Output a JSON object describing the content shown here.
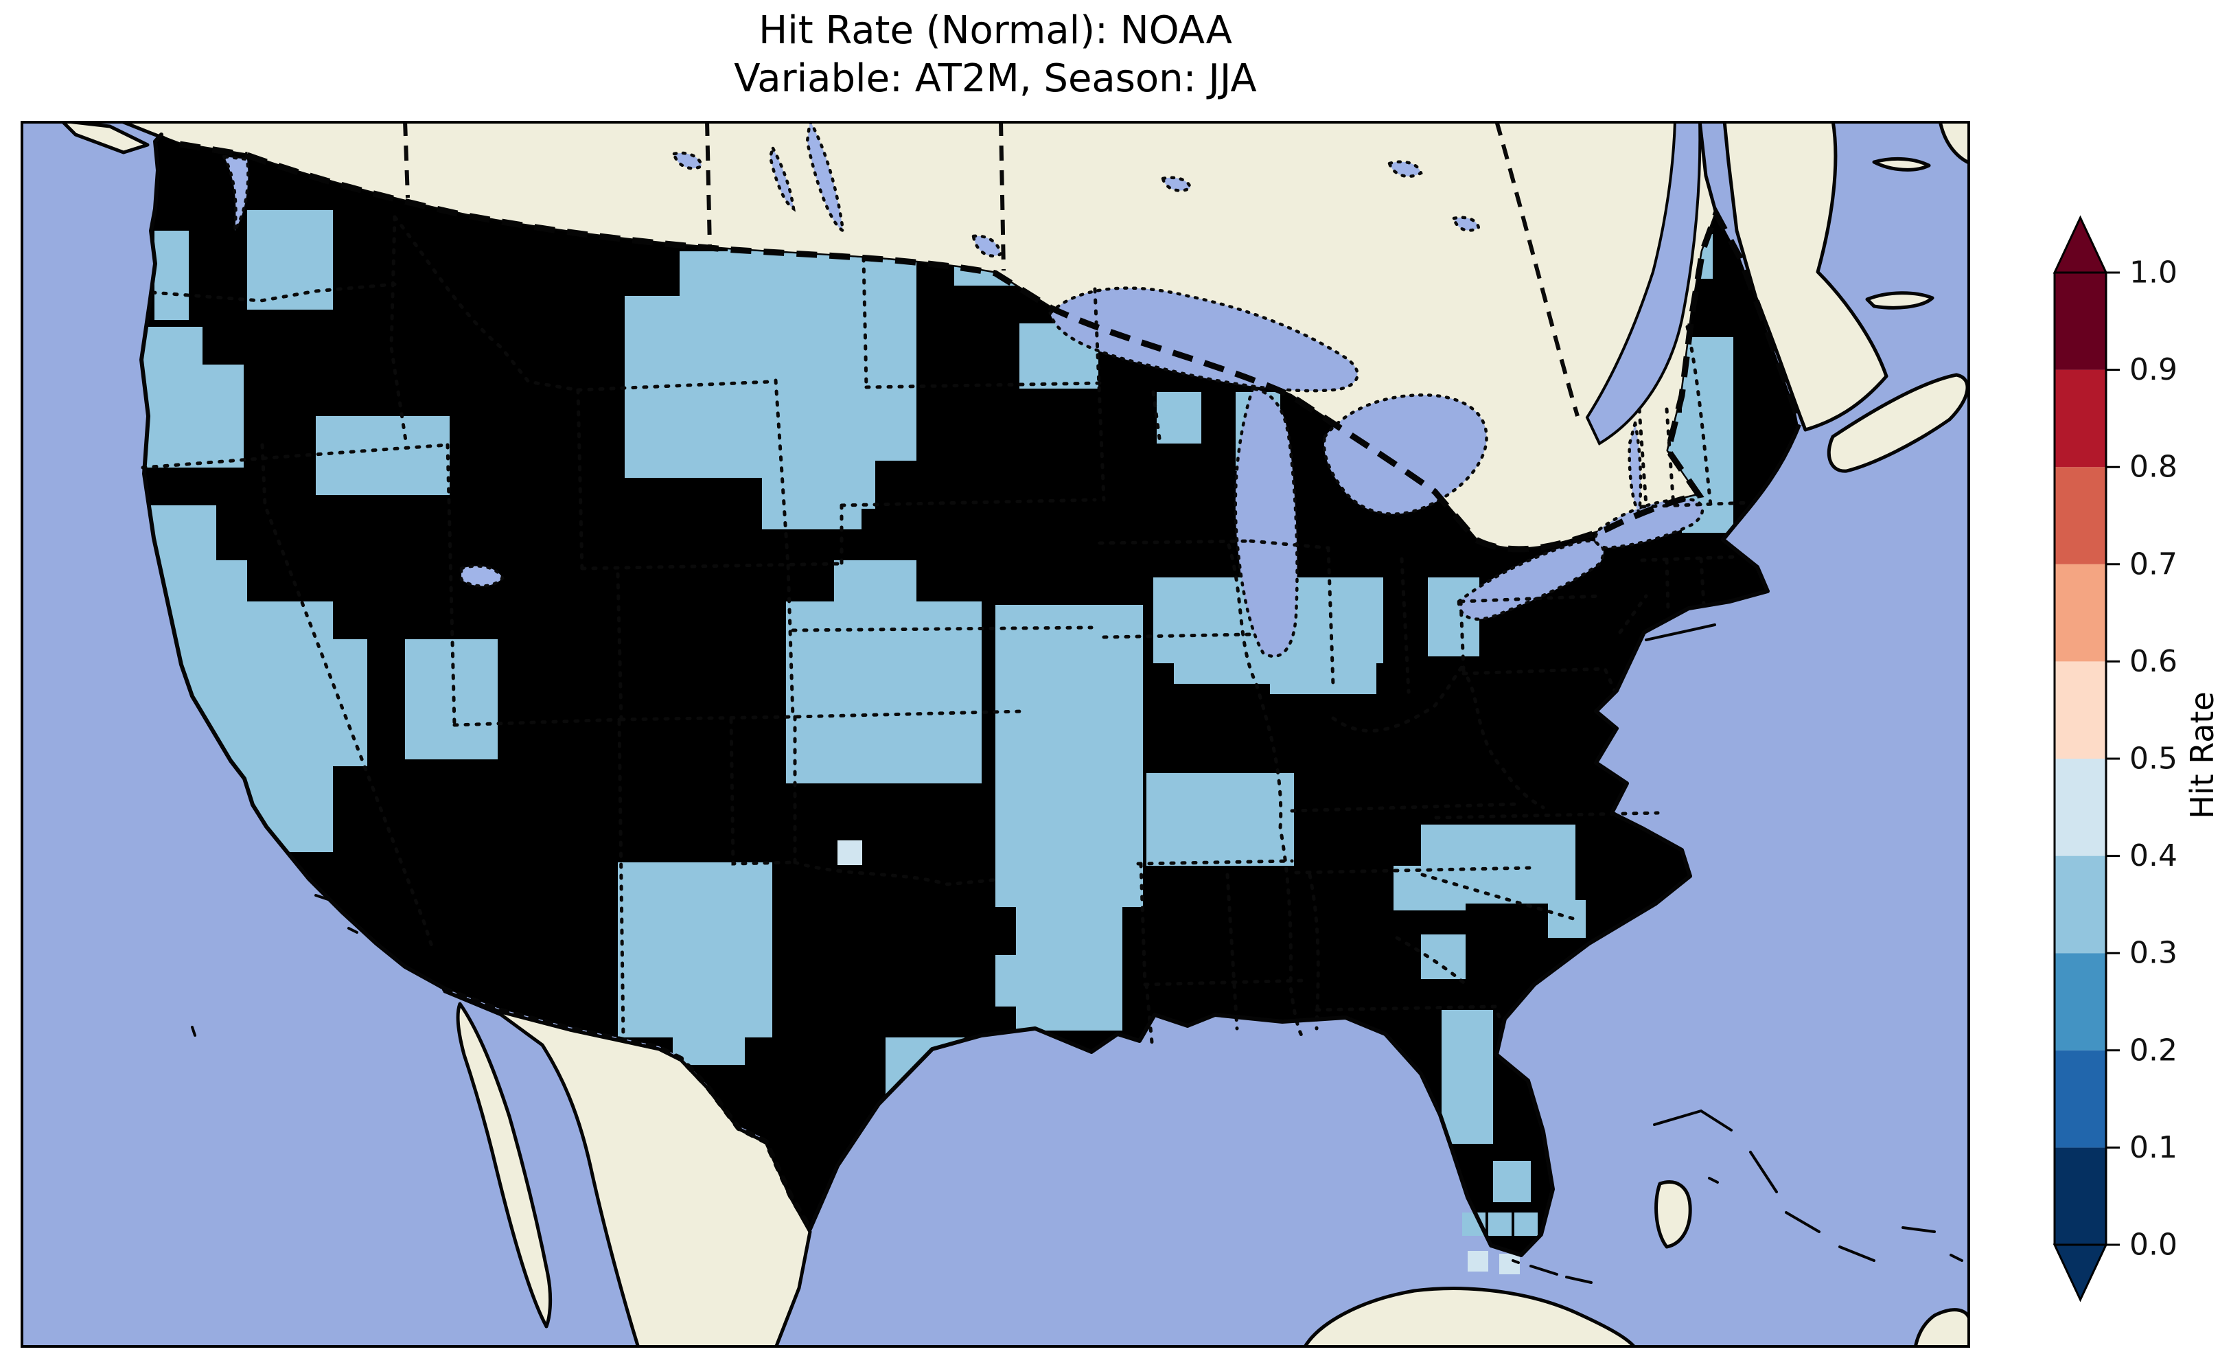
{
  "title": {
    "line1": "Hit Rate (Normal): NOAA",
    "line2": "Variable: AT2M, Season: JJA"
  },
  "colorbar": {
    "label": "Hit Rate",
    "ticks": [
      {
        "v": 1.0,
        "label": "1.0"
      },
      {
        "v": 0.9,
        "label": "0.9"
      },
      {
        "v": 0.8,
        "label": "0.8"
      },
      {
        "v": 0.7,
        "label": "0.7"
      },
      {
        "v": 0.6,
        "label": "0.6"
      },
      {
        "v": 0.5,
        "label": "0.5"
      },
      {
        "v": 0.4,
        "label": "0.4"
      },
      {
        "v": 0.3,
        "label": "0.3"
      },
      {
        "v": 0.2,
        "label": "0.2"
      },
      {
        "v": 0.1,
        "label": "0.1"
      },
      {
        "v": 0.0,
        "label": "0.0"
      }
    ],
    "bin_colors_low_to_high": [
      "#053061",
      "#2166ac",
      "#4393c3",
      "#92c5de",
      "#d1e5f0",
      "#fddbc7",
      "#f4a582",
      "#d6604d",
      "#b2182b",
      "#67001f"
    ],
    "extend_under_color": "#053061",
    "extend_over_color": "#67001f"
  },
  "map": {
    "ocean_color": "#98ace0",
    "land_color": "#f0eedc",
    "lake_color": "#9aaee2",
    "small_lake_color": "#a0b4e8",
    "base_us_color": "#4393c3",
    "line_color": "#050505"
  },
  "chart_data": {
    "type": "heatmap",
    "subtype": "geographic choropleth (pcolormesh over CONUS, conic projection)",
    "title": "Hit Rate (Normal): NOAA",
    "subtitle": "Variable: AT2M, Season: JJA",
    "source_label": "NOAA",
    "variable": "AT2M",
    "season": "JJA",
    "region": "Contiguous United States with Canada/Mexico/Caribbean basemap",
    "colorbar_label": "Hit Rate",
    "value_range": [
      0.0,
      1.0
    ],
    "colorbar_ticks": [
      0.0,
      0.1,
      0.2,
      0.3,
      0.4,
      0.5,
      0.6,
      0.7,
      0.8,
      0.9,
      1.0
    ],
    "colormap": "RdBu_r discretized into 10 bins, extend=both",
    "bin_colors_low_to_high": [
      "#053061",
      "#2166ac",
      "#4393c3",
      "#92c5de",
      "#d1e5f0",
      "#fddbc7",
      "#f4a582",
      "#d6604d",
      "#b2182b",
      "#67001f"
    ],
    "legend_position": "right vertical colorbar",
    "grid": "off",
    "observed_distribution": "Most of CONUS falls in the 0.2–0.3 bin (mid blue); large patches in the 0.3–0.4 bin (light blue) over the Pacific coast, Great Basin/Nevada-Utah, central Montana, central Plains (NE/KS), Missouri-Arkansas, west Texas, Ohio Valley, western KY/TN, central North Carolina, coastal New England and central Florida; a few isolated 0.4–0.5 cells (very pale) near south Florida and the southern Plains. No values above 0.5 appear on the map.",
    "base_value": 0.25,
    "value_colors": {
      "0.25": "#4393c3",
      "0.35": "#92c5de",
      "0.45": "#d1e5f0"
    },
    "cells": [
      [
        195,
        160,
        50,
        130,
        0.35
      ],
      [
        150,
        300,
        115,
        205,
        0.35
      ],
      [
        235,
        355,
        90,
        150,
        0.35
      ],
      [
        150,
        560,
        135,
        225,
        0.35
      ],
      [
        255,
        640,
        75,
        120,
        0.35
      ],
      [
        330,
        130,
        125,
        145,
        0.35
      ],
      [
        1030,
        60,
        295,
        130,
        0.35
      ],
      [
        1180,
        150,
        90,
        80,
        0.35
      ],
      [
        880,
        255,
        205,
        265,
        0.35
      ],
      [
        960,
        190,
        345,
        305,
        0.35
      ],
      [
        1085,
        470,
        160,
        95,
        0.35
      ],
      [
        1080,
        430,
        145,
        165,
        0.35
      ],
      [
        1115,
        700,
        285,
        265,
        0.35
      ],
      [
        1185,
        640,
        120,
        70,
        0.35
      ],
      [
        1420,
        705,
        215,
        440,
        0.35
      ],
      [
        1450,
        1100,
        155,
        225,
        0.35
      ],
      [
        1495,
        1030,
        140,
        80,
        0.35
      ],
      [
        1640,
        950,
        215,
        135,
        0.35
      ],
      [
        1820,
        710,
        155,
        125,
        0.35
      ],
      [
        1650,
        665,
        335,
        125,
        0.35
      ],
      [
        2050,
        665,
        75,
        115,
        0.35
      ],
      [
        210,
        700,
        245,
        365,
        0.35
      ],
      [
        380,
        755,
        125,
        185,
        0.35
      ],
      [
        430,
        430,
        195,
        115,
        0.35
      ],
      [
        560,
        755,
        135,
        175,
        0.35
      ],
      [
        930,
        1195,
        95,
        95,
        0.35
      ],
      [
        870,
        1080,
        225,
        255,
        0.35
      ],
      [
        950,
        1280,
        105,
        95,
        0.35
      ],
      [
        1260,
        1335,
        115,
        145,
        0.35
      ],
      [
        1420,
        1215,
        125,
        75,
        0.35
      ],
      [
        1360,
        150,
        95,
        90,
        0.35
      ],
      [
        1455,
        295,
        115,
        95,
        0.35
      ],
      [
        1655,
        395,
        65,
        75,
        0.35
      ],
      [
        1770,
        395,
        65,
        115,
        0.35
      ],
      [
        1680,
        755,
        155,
        65,
        0.35
      ],
      [
        2280,
        375,
        65,
        75,
        0.35
      ],
      [
        2370,
        425,
        60,
        125,
        0.35
      ],
      [
        2420,
        315,
        75,
        285,
        0.35
      ],
      [
        2420,
        165,
        45,
        65,
        0.35
      ],
      [
        2040,
        1025,
        225,
        115,
        0.35
      ],
      [
        2000,
        1085,
        105,
        65,
        0.35
      ],
      [
        2040,
        1185,
        65,
        65,
        0.35
      ],
      [
        2225,
        1135,
        55,
        55,
        0.35
      ],
      [
        2070,
        1295,
        75,
        195,
        0.35
      ],
      [
        2145,
        1515,
        55,
        60,
        0.35
      ],
      [
        1190,
        1048,
        36,
        36,
        0.45
      ]
    ],
    "cells_over_water": [
      [
        2100,
        1590,
        34,
        34,
        0.35
      ],
      [
        2138,
        1590,
        34,
        34,
        0.35
      ],
      [
        2176,
        1590,
        34,
        34,
        0.35
      ],
      [
        2108,
        1646,
        30,
        30,
        0.45
      ],
      [
        2154,
        1650,
        30,
        30,
        0.45
      ]
    ]
  }
}
